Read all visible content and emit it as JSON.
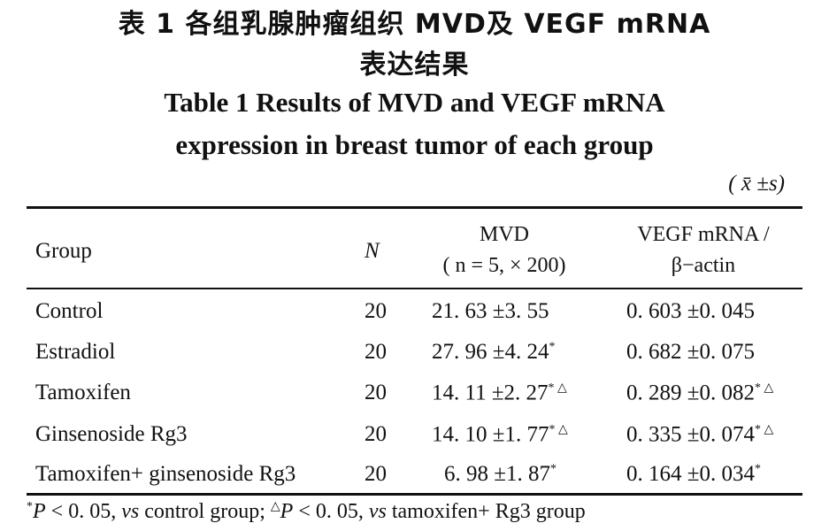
{
  "title_cn_line1": "表 1  各组乳腺肿瘤组织 MVD及 VEGF mRNA",
  "title_cn_line2": "表达结果",
  "title_en_line1": "Table 1   Results of MVD  and VEGF mRNA",
  "title_en_line2": "expression  in breast tumor of each group",
  "unit": "( x̄ ±s)",
  "headers": {
    "group": "Group",
    "n": "N",
    "mvd_line1": "MVD",
    "mvd_line2": "( n =  5,  × 200)",
    "vegf_line1": "VEGF mRNA /",
    "vegf_line2": "β−actin"
  },
  "rows": [
    {
      "group": "Control",
      "n": "20",
      "mvd": "21. 63 ±3. 55",
      "mvd_mark": "",
      "vegf": "0. 603 ±0. 045",
      "vegf_mark": ""
    },
    {
      "group": "Estradiol",
      "n": "20",
      "mvd": "27. 96 ±4. 24",
      "mvd_mark": "*",
      "vegf": "0. 682 ±0. 075",
      "vegf_mark": ""
    },
    {
      "group": "Tamoxifen",
      "n": "20",
      "mvd": "14. 11 ±2. 27",
      "mvd_mark": "* △",
      "vegf": "0. 289 ±0. 082",
      "vegf_mark": "* △"
    },
    {
      "group": "Ginsenoside Rg3",
      "n": "20",
      "mvd": "14. 10 ±1. 77",
      "mvd_mark": "* △",
      "vegf": "0. 335 ±0. 074",
      "vegf_mark": "* △"
    },
    {
      "group": "Tamoxifen+  ginsenoside Rg3",
      "n": "20",
      "mvd": "6. 98 ±1. 87",
      "mvd_mark": "*",
      "vegf": "0. 164 ±0. 034",
      "vegf_mark": "*"
    }
  ],
  "footnote": {
    "mark1": "*",
    "text1_p": "P",
    "text1": " < 0. 05,  ",
    "text1_vs": "vs",
    "text1_end": " control group;  ",
    "mark2": "△",
    "text2_p": "P",
    "text2": " < 0. 05,   ",
    "text2_vs": "vs",
    "text2_end": "  tamoxifen+ Rg3  group"
  }
}
